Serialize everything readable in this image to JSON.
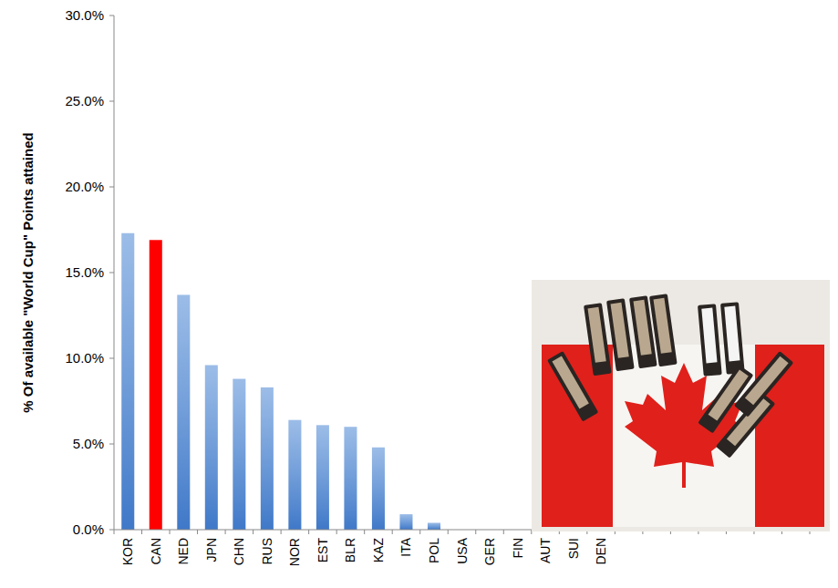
{
  "chart_data": {
    "type": "bar",
    "y_label": "% Of available \"World Cup\" Points attained",
    "categories": [
      "KOR",
      "CAN",
      "NED",
      "JPN",
      "CHN",
      "RUS",
      "NOR",
      "EST",
      "BLR",
      "KAZ",
      "ITA",
      "POL",
      "USA",
      "GER",
      "FIN",
      "AUT",
      "SUI",
      "DEN",
      null,
      null,
      null,
      null,
      null,
      null,
      null
    ],
    "values": [
      17.3,
      16.9,
      13.7,
      9.6,
      8.8,
      8.3,
      6.4,
      6.1,
      6.0,
      4.8,
      0.9,
      0.4,
      0,
      0,
      0,
      0,
      0,
      0,
      0,
      0,
      0,
      0,
      0,
      0,
      0
    ],
    "colors": [
      "#7aa6df",
      "#ff0000",
      "#7aa6df",
      "#7aa6df",
      "#7aa6df",
      "#7aa6df",
      "#7aa6df",
      "#7aa6df",
      "#7aa6df",
      "#7aa6df",
      "#7aa6df",
      "#7aa6df",
      "#7aa6df",
      "#7aa6df",
      "#7aa6df",
      "#7aa6df",
      "#7aa6df",
      "#7aa6df",
      "#7aa6df",
      "#7aa6df",
      "#7aa6df",
      "#7aa6df",
      "#7aa6df",
      "#7aa6df",
      "#7aa6df"
    ],
    "ylim": [
      0,
      30
    ],
    "yticks": [
      {
        "value": 0,
        "label": "0.0%"
      },
      {
        "value": 5,
        "label": "5.0%"
      },
      {
        "value": 10,
        "label": "10.0%"
      },
      {
        "value": 15,
        "label": "15.0%"
      },
      {
        "value": 20,
        "label": "20.0%"
      },
      {
        "value": 25,
        "label": "25.0%"
      },
      {
        "value": 30,
        "label": "30.0%"
      }
    ],
    "grid": false
  }
}
